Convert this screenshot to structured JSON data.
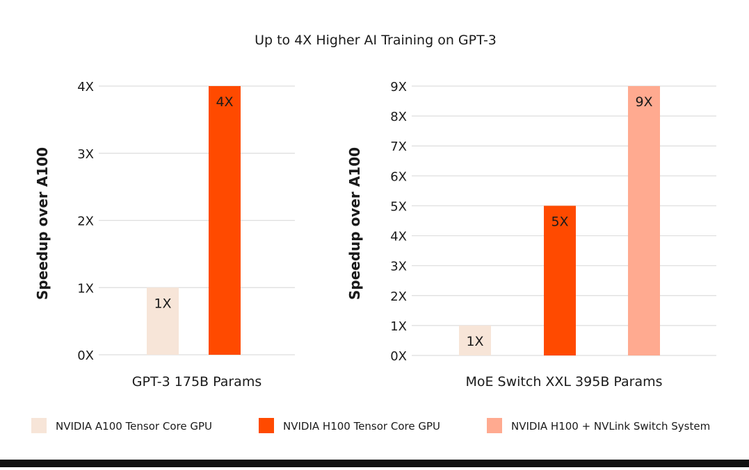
{
  "title": "Up to 4X Higher AI Training on GPT-3",
  "colors": {
    "a100": "#F7E5D8",
    "h100": "#FF4A00",
    "nvlink": "#FFAA90",
    "grid": "#DDDDDD",
    "text": "#1A1A1A",
    "bottom_bar": "#111111"
  },
  "legend": [
    {
      "key": "a100",
      "label": "NVIDIA A100 Tensor Core GPU"
    },
    {
      "key": "h100",
      "label": "NVIDIA H100 Tensor Core GPU"
    },
    {
      "key": "nvlink",
      "label": "NVIDIA  H100 + NVLink Switch System"
    }
  ],
  "chart_data": [
    {
      "type": "bar",
      "title": "",
      "xlabel": "GPT-3 175B Params",
      "ylabel": "Speedup over A100",
      "ylim": [
        0,
        4
      ],
      "yticks": [
        0,
        1,
        2,
        3,
        4
      ],
      "ytick_labels": [
        "0X",
        "1X",
        "2X",
        "3X",
        "4X"
      ],
      "grid": true,
      "series": [
        {
          "name": "NVIDIA A100 Tensor Core GPU",
          "color_key": "a100",
          "value": 1,
          "label": "1X"
        },
        {
          "name": "NVIDIA H100 Tensor Core GPU",
          "color_key": "h100",
          "value": 4,
          "label": "4X"
        }
      ]
    },
    {
      "type": "bar",
      "title": "",
      "xlabel": "MoE Switch XXL 395B Params",
      "ylabel": "Speedup over A100",
      "ylim": [
        0,
        9
      ],
      "yticks": [
        0,
        1,
        2,
        3,
        4,
        5,
        6,
        7,
        8,
        9
      ],
      "ytick_labels": [
        "0X",
        "1X",
        "2X",
        "3X",
        "4X",
        "5X",
        "6X",
        "7X",
        "8X",
        "9X"
      ],
      "grid": true,
      "series": [
        {
          "name": "NVIDIA A100 Tensor Core GPU",
          "color_key": "a100",
          "value": 1,
          "label": "1X"
        },
        {
          "name": "NVIDIA H100 Tensor Core GPU",
          "color_key": "h100",
          "value": 5,
          "label": "5X"
        },
        {
          "name": "NVIDIA  H100 + NVLink Switch System",
          "color_key": "nvlink",
          "value": 9,
          "label": "9X"
        }
      ]
    }
  ]
}
